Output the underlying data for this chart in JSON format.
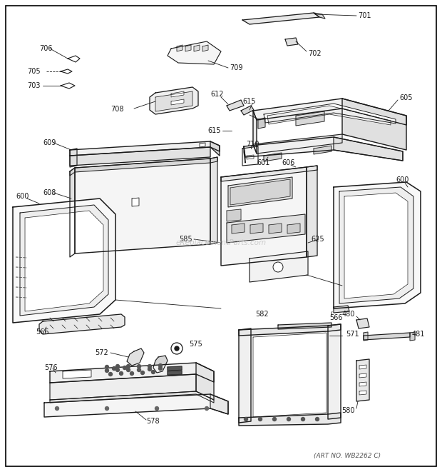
{
  "fig_width": 6.2,
  "fig_height": 6.61,
  "dpi": 100,
  "background_color": "#ffffff",
  "line_color": "#1a1a1a",
  "art_no": "(ART NO. WB2262 C)"
}
